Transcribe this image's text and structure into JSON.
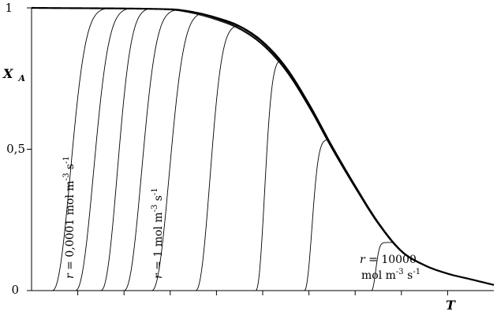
{
  "chart_data": {
    "type": "line",
    "title": "",
    "xlabel": "T",
    "ylabel_main": "X",
    "ylabel_sub": "A",
    "ylim": [
      0,
      1
    ],
    "xlim": [
      0,
      1
    ],
    "yticks": [
      {
        "value": 0,
        "label": "0"
      },
      {
        "value": 0.5,
        "label": "0,5"
      },
      {
        "value": 1,
        "label": "1"
      }
    ],
    "x_tick_marks": [
      0.1,
      0.2,
      0.3,
      0.4,
      0.5,
      0.6,
      0.7,
      0.8,
      0.9
    ],
    "equilibrium": {
      "x": [
        0.0,
        0.3,
        0.35,
        0.4,
        0.45,
        0.5,
        0.55,
        0.6,
        0.65,
        0.7,
        0.75,
        0.8,
        0.85,
        0.9,
        0.95,
        1.0
      ],
      "values": [
        1.0,
        0.995,
        0.985,
        0.965,
        0.935,
        0.88,
        0.79,
        0.66,
        0.51,
        0.37,
        0.24,
        0.14,
        0.09,
        0.06,
        0.04,
        0.02
      ]
    },
    "rate_curves": [
      {
        "x0": 0.045,
        "peak_x": 0.21,
        "peak_y": 1.0
      },
      {
        "x0": 0.095,
        "peak_x": 0.26,
        "peak_y": 1.0
      },
      {
        "x0": 0.15,
        "peak_x": 0.3,
        "peak_y": 1.0
      },
      {
        "x0": 0.2,
        "peak_x": 0.36,
        "peak_y": 0.995
      },
      {
        "x0": 0.26,
        "peak_x": 0.42,
        "peak_y": 0.985
      },
      {
        "x0": 0.355,
        "peak_x": 0.485,
        "peak_y": 0.94
      },
      {
        "x0": 0.485,
        "peak_x": 0.565,
        "peak_y": 0.82
      },
      {
        "x0": 0.59,
        "peak_x": 0.66,
        "peak_y": 0.535
      },
      {
        "x0": 0.735,
        "peak_x": 0.775,
        "peak_y": 0.17
      }
    ],
    "annotations": {
      "low": {
        "prefix": "r",
        "text": " = 0,0001 mol m",
        "exp1": "-3",
        "mid": " s",
        "exp2": "-1"
      },
      "mid": {
        "prefix": "r",
        "text": " = 1 mol m",
        "exp1": "-3",
        "mid": " s",
        "exp2": "-1"
      },
      "high_line1": {
        "prefix": "r",
        "text": " = 10000"
      },
      "high_line2": {
        "text": "mol m",
        "exp1": "-3",
        "mid": " s",
        "exp2": "-1"
      }
    },
    "grid": false,
    "colors": {
      "line": "#000000",
      "axis": "#000000"
    }
  }
}
